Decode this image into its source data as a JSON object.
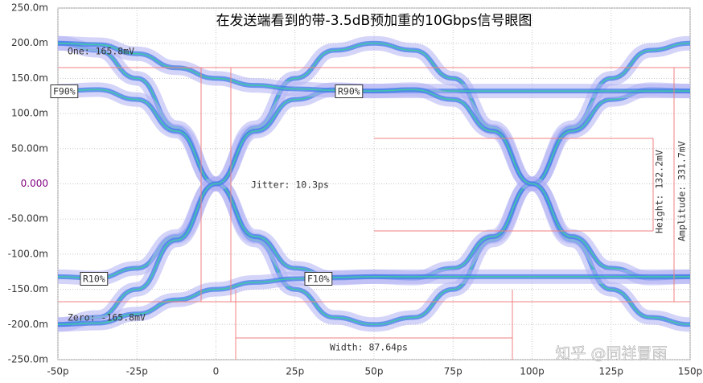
{
  "chart_data": {
    "type": "eye",
    "title": "在发送端看到的带-3.5dB预加重的10Gbps信号眼图",
    "watermark": "知乎 @同祥冒雨",
    "xlim": [
      -50,
      150
    ],
    "ylim": [
      -250,
      250
    ],
    "xticks": [
      {
        "value": -50,
        "label": "-50p"
      },
      {
        "value": -25,
        "label": "-25p"
      },
      0,
      {
        "value": 25,
        "label": "25p"
      },
      {
        "value": 50,
        "label": "50p"
      },
      {
        "value": 75,
        "label": "75p"
      },
      {
        "value": 100,
        "label": "100p"
      },
      {
        "value": 125,
        "label": "125p"
      },
      {
        "value": 150,
        "label": "150p"
      }
    ],
    "yticks": [
      {
        "value": 250,
        "label": "250.0m"
      },
      {
        "value": 200,
        "label": "200.0m"
      },
      {
        "value": 150,
        "label": "150.0m"
      },
      {
        "value": 100,
        "label": "100.0m"
      },
      {
        "value": 50,
        "label": "50.00m"
      },
      {
        "value": 0,
        "label": "0.000"
      },
      {
        "value": -50,
        "label": "-50.00m"
      },
      {
        "value": -100,
        "label": "-100.0m"
      },
      {
        "value": -150,
        "label": "-150.0m"
      },
      {
        "value": -200,
        "label": "-200.0m"
      },
      {
        "value": -250,
        "label": "-250.0m"
      }
    ],
    "grid": true,
    "x": [
      -50,
      -37.5,
      -25,
      -12.5,
      0,
      12.5,
      25,
      37.5,
      50,
      62.5,
      75,
      87.5,
      100,
      112.5,
      125,
      137.5,
      150
    ],
    "series": [
      {
        "color": "#3a78e8",
        "values": [
          -132,
          -134,
          -120,
          -75,
          0,
          80,
          150,
          190,
          200,
          190,
          150,
          80,
          0,
          -80,
          -150,
          -190,
          -200
        ]
      },
      {
        "color": "#3a78e8",
        "values": [
          200,
          190,
          150,
          80,
          0,
          -80,
          -150,
          -190,
          -200,
          -190,
          -150,
          -80,
          0,
          80,
          150,
          190,
          200
        ]
      },
      {
        "color": "#3a78e8",
        "values": [
          132,
          134,
          120,
          75,
          0,
          -75,
          -120,
          -134,
          -132,
          -134,
          -120,
          -75,
          0,
          75,
          120,
          134,
          132
        ]
      },
      {
        "color": "#3a78e8",
        "values": [
          -200,
          -190,
          -150,
          -80,
          0,
          75,
          120,
          134,
          132,
          132,
          132,
          132,
          132,
          132,
          132,
          132,
          132
        ]
      },
      {
        "color": "#3a78e8",
        "values": [
          200,
          198,
          185,
          165,
          150,
          140,
          135,
          133,
          132,
          134,
          120,
          75,
          0,
          -75,
          -120,
          -134,
          -132
        ]
      },
      {
        "color": "#3a78e8",
        "values": [
          -200,
          -198,
          -185,
          -165,
          -150,
          -140,
          -135,
          -133,
          -132,
          -132,
          -132,
          -132,
          -132,
          -132,
          -132,
          -132,
          -132
        ]
      }
    ],
    "annotations": [
      "One: 165.8mV",
      "Zero: -165.8mV",
      "F90%",
      "R90%",
      "R10%",
      "F10%",
      "Jitter: 10.3ps",
      "Width: 87.64ps",
      "Height: 132.2mV",
      "Amplitude: 331.7mV"
    ]
  }
}
